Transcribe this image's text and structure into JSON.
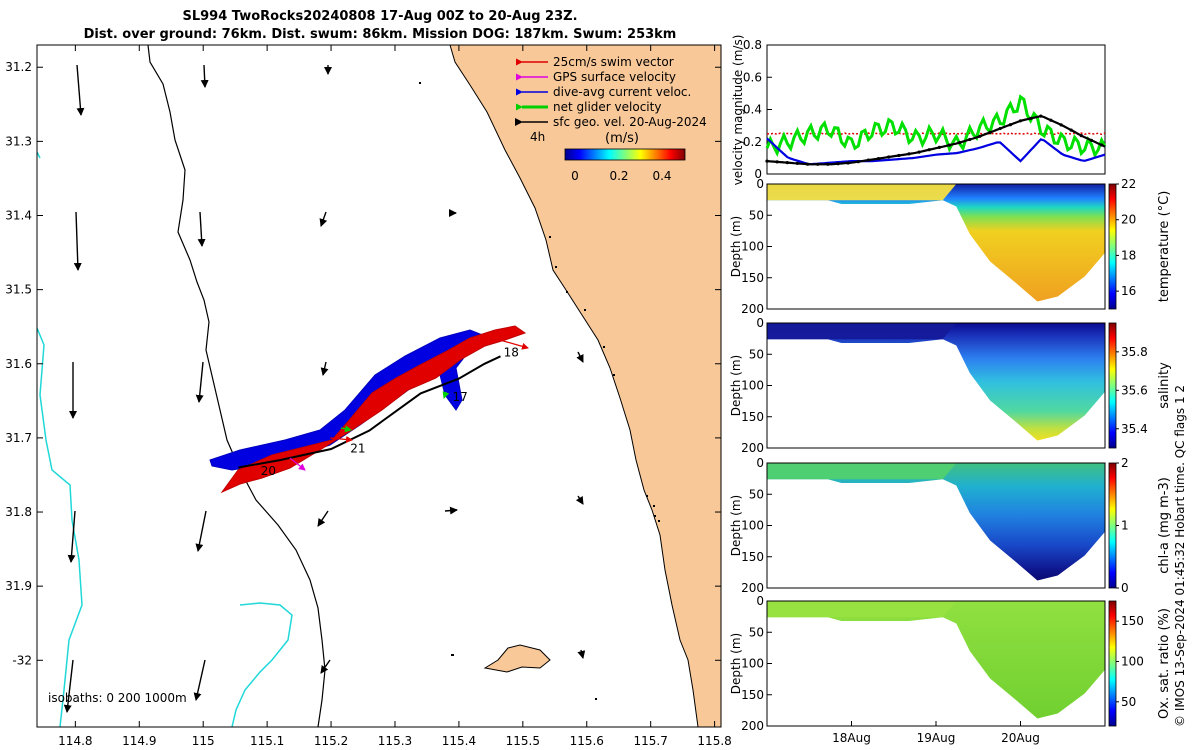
{
  "header": {
    "line1": "SL994 TwoRocks20240808 17-Aug 00Z to 20-Aug 23Z.",
    "line2": "Dist. over ground: 76km. Dist. swum: 86km. Mission DOG: 187km. Swum: 253km"
  },
  "chart_data": [
    {
      "id": "map",
      "type": "scatter",
      "title": "glider track map",
      "x_ticks": [
        "114.8",
        "114.9",
        "115",
        "115.1",
        "115.2",
        "115.3",
        "115.4",
        "115.5",
        "115.6",
        "115.7",
        "115.8"
      ],
      "y_ticks": [
        "31.2",
        "31.3",
        "31.4",
        "31.5",
        "31.6",
        "31.7",
        "31.8",
        "31.9",
        "-32"
      ],
      "xlim": [
        114.74,
        115.81
      ],
      "ylim": [
        -32.09,
        -31.17
      ],
      "legend": [
        {
          "label": "25cm/s swim vector",
          "color": "#e00000"
        },
        {
          "label": "GPS surface velocity",
          "color": "#e000e0"
        },
        {
          "label": "dive-avg current veloc.",
          "color": "#0000e0"
        },
        {
          "label": "net glider velocity",
          "color": "#00e000"
        },
        {
          "label": "sfc geo. vel. 20-Aug-2024",
          "color": "#000000"
        }
      ],
      "time_marker": "4h",
      "colorbar": {
        "label": "(m/s)",
        "ticks": [
          "0",
          "0.2",
          "0.4"
        ],
        "range": [
          0,
          0.5
        ]
      },
      "isobath_label": "isobaths: 0   200  1000m",
      "day_labels": [
        {
          "text": "18",
          "lon": 115.47,
          "lat": -31.59
        },
        {
          "text": "17",
          "lon": 115.39,
          "lat": -31.65
        },
        {
          "text": "21",
          "lon": 115.23,
          "lat": -31.72
        },
        {
          "text": "20",
          "lon": 115.09,
          "lat": -31.75
        }
      ],
      "track": [
        [
          115.055,
          -31.74
        ],
        [
          115.12,
          -31.73
        ],
        [
          115.2,
          -31.715
        ],
        [
          115.26,
          -31.69
        ],
        [
          115.3,
          -31.665
        ],
        [
          115.34,
          -31.64
        ],
        [
          115.4,
          -31.62
        ],
        [
          115.44,
          -31.6
        ],
        [
          115.465,
          -31.59
        ]
      ]
    },
    {
      "id": "velocity",
      "type": "line",
      "ylabel": "velocity magnitude (m/s)",
      "ylim": [
        0,
        0.8
      ],
      "y_ticks": [
        "0",
        "0.2",
        "0.4",
        "0.6",
        "0.8"
      ],
      "x": [
        0,
        0.25,
        0.5,
        0.75,
        1,
        1.25,
        1.5,
        1.75,
        2,
        2.25,
        2.5,
        2.75,
        3,
        3.25,
        3.5,
        3.75,
        4
      ],
      "series": [
        {
          "name": "swim",
          "color": "#e00000",
          "values": [
            0.25,
            0.25,
            0.25,
            0.25,
            0.25,
            0.25,
            0.25,
            0.25,
            0.25,
            0.25,
            0.25,
            0.25,
            0.25,
            0.25,
            0.25,
            0.25,
            0.25
          ]
        },
        {
          "name": "net glider",
          "color": "#00e000",
          "values": [
            0.16,
            0.2,
            0.25,
            0.28,
            0.18,
            0.27,
            0.3,
            0.22,
            0.25,
            0.18,
            0.28,
            0.33,
            0.45,
            0.28,
            0.2,
            0.17,
            0.16
          ]
        },
        {
          "name": "dive-avg current",
          "color": "#0000e0",
          "values": [
            0.22,
            0.1,
            0.06,
            0.07,
            0.08,
            0.08,
            0.09,
            0.1,
            0.12,
            0.13,
            0.16,
            0.2,
            0.08,
            0.22,
            0.12,
            0.08,
            0.12
          ]
        },
        {
          "name": "sfc geo",
          "color": "#000000",
          "values": [
            0.08,
            0.07,
            0.06,
            0.06,
            0.07,
            0.09,
            0.11,
            0.13,
            0.16,
            0.19,
            0.23,
            0.28,
            0.33,
            0.36,
            0.3,
            0.23,
            0.17
          ]
        }
      ]
    },
    {
      "id": "temperature",
      "type": "heatmap",
      "ylabel": "Depth (m)",
      "cblabel": "temperature (°C)",
      "cb_ticks": [
        "16",
        "18",
        "20",
        "22"
      ],
      "cb_range": [
        15,
        22
      ],
      "y_ticks": [
        "0",
        "50",
        "100",
        "150",
        "200"
      ]
    },
    {
      "id": "salinity",
      "type": "heatmap",
      "ylabel": "Depth (m)",
      "cblabel": "salinity",
      "cb_ticks": [
        "35.4",
        "35.6",
        "35.8"
      ],
      "cb_range": [
        35.3,
        35.95
      ],
      "y_ticks": [
        "0",
        "50",
        "100",
        "150",
        "200"
      ]
    },
    {
      "id": "chla",
      "type": "heatmap",
      "ylabel": "Depth (m)",
      "cblabel": "chl-a (mg m-3)",
      "cb_ticks": [
        "0",
        "1",
        "2"
      ],
      "cb_range": [
        0,
        2
      ],
      "y_ticks": [
        "0",
        "50",
        "100",
        "150",
        "200"
      ]
    },
    {
      "id": "oxygen",
      "type": "heatmap",
      "ylabel": "Depth (m)",
      "cblabel": "Ox. sat. ratio (%)",
      "cb_ticks": [
        "50",
        "100",
        "150"
      ],
      "cb_range": [
        20,
        175
      ],
      "y_ticks": [
        "0",
        "50",
        "100",
        "150",
        "200"
      ],
      "x_ticks": [
        "18Aug",
        "19Aug",
        "20Aug"
      ]
    }
  ],
  "credit": "© IMOS 13-Sep-2024 01:45:32 Hobart time. QC flags 1  2"
}
